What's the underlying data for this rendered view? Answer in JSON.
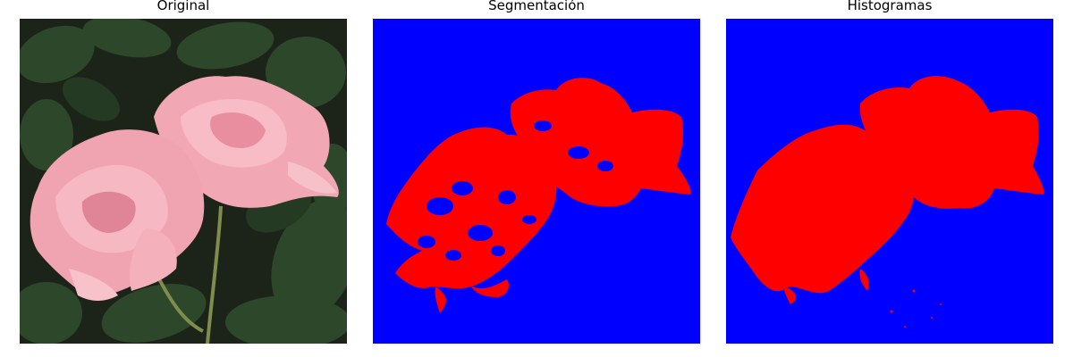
{
  "panels": [
    {
      "title": "Original"
    },
    {
      "title": "Segmentación"
    },
    {
      "title": "Histogramas"
    }
  ],
  "colors": {
    "background_class": "#0000ff",
    "foreground_class": "#ff0000",
    "photo_background": "#1f2a1c",
    "leaf": "#2c4a2a",
    "petal_light": "#f6b3bd",
    "petal_mid": "#ee9aa8",
    "petal_dark": "#d9788a",
    "stem": "#7a8a4a"
  },
  "icons": {
    "original": "rose-photo",
    "segmentation": "segmentation-mask",
    "histograms": "histogram-mask"
  }
}
